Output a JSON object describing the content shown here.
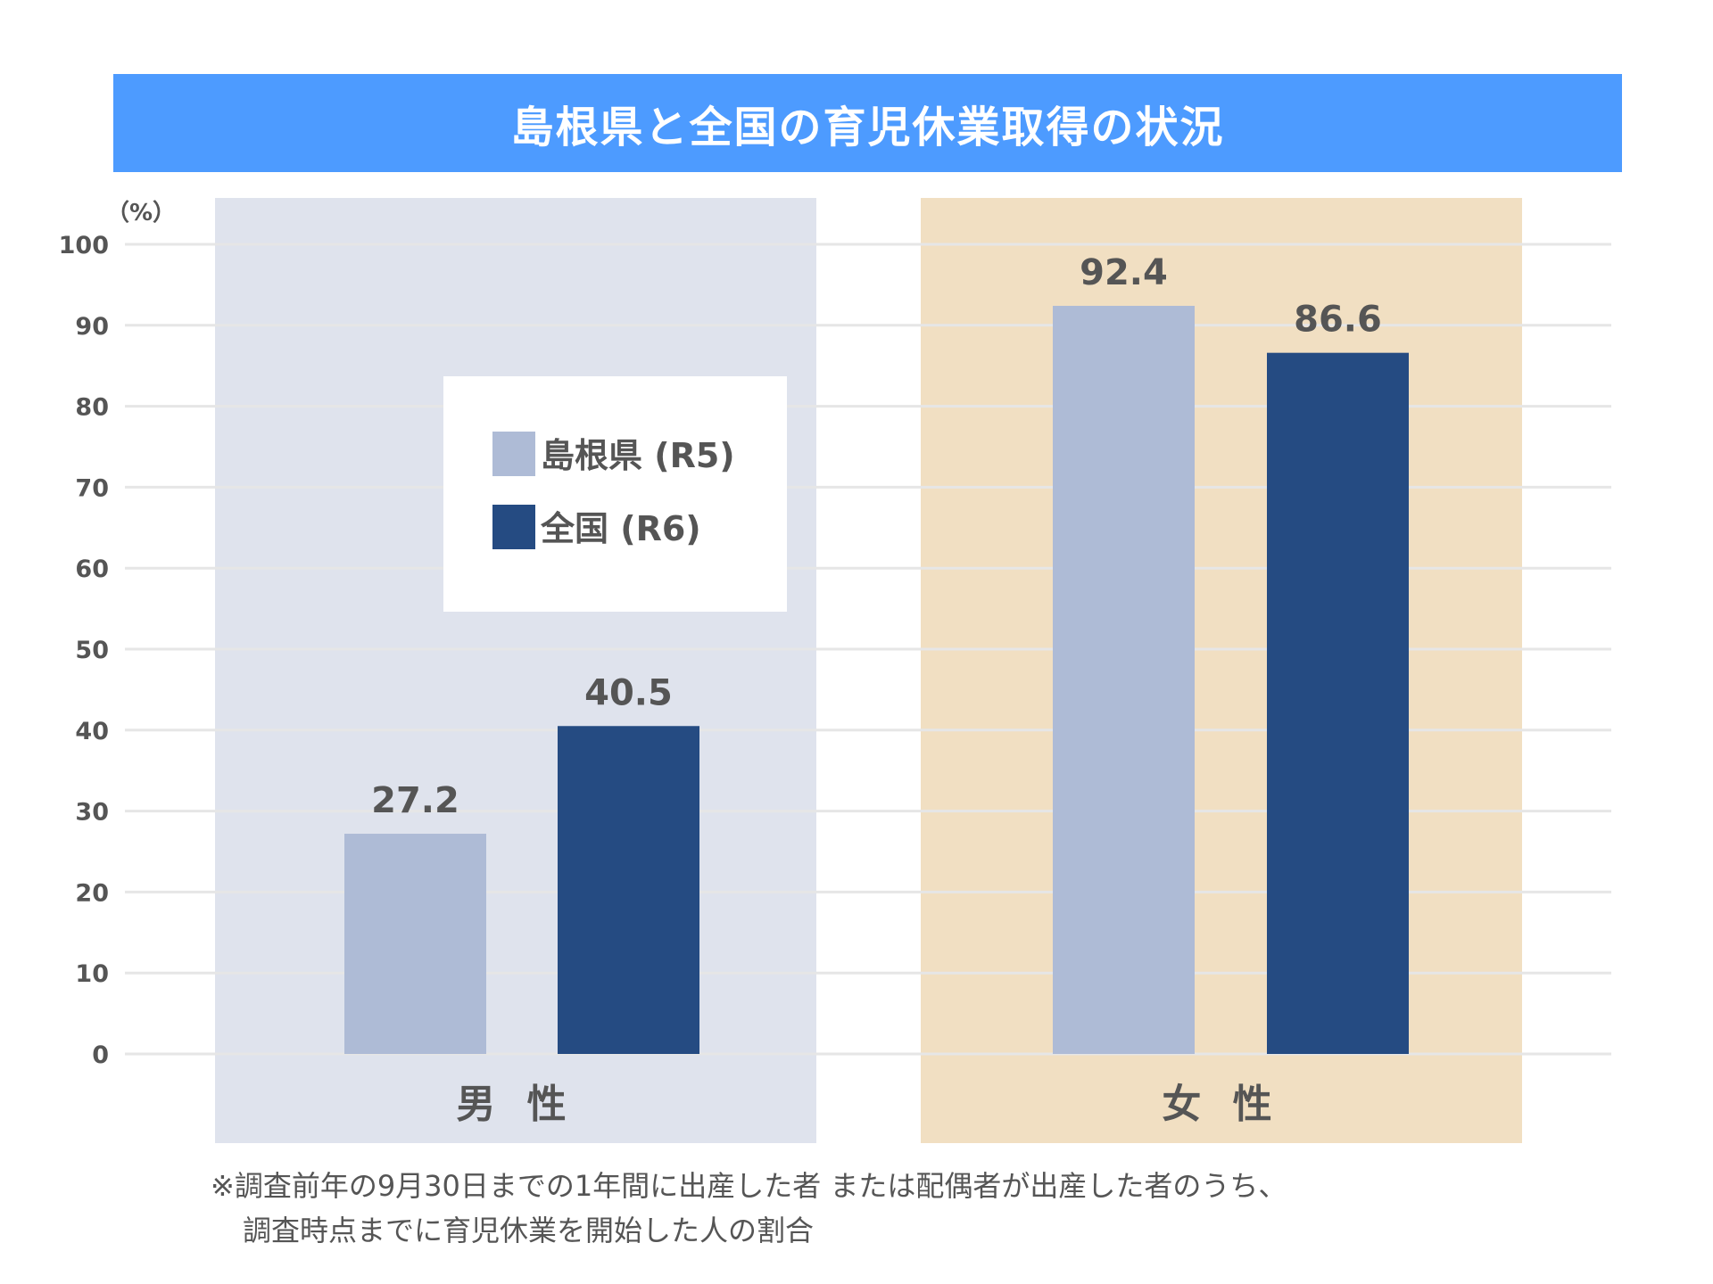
{
  "chart_data": {
    "type": "bar",
    "title": "島根県と全国の育児休業取得の状況",
    "unit": "（%）",
    "categories": [
      "男 性",
      "女 性"
    ],
    "series": [
      {
        "name": "島根県 (R5)",
        "values": [
          27.2,
          92.4
        ]
      },
      {
        "name": "全国 (R6)",
        "values": [
          40.5,
          86.6
        ]
      }
    ],
    "value_labels": [
      [
        "27.2",
        "92.4"
      ],
      [
        "40.5",
        "86.6"
      ]
    ],
    "y_ticks": [
      "0",
      "10",
      "20",
      "30",
      "40",
      "50",
      "60",
      "70",
      "80",
      "90",
      "100"
    ],
    "ylim": [
      0,
      100
    ],
    "grid": true,
    "legend_position": "inside-left-group",
    "colors": {
      "title_bg": "#4d9bff",
      "series": [
        "#aebbd6",
        "#254b82"
      ],
      "group_bg": [
        "#dfe3ed",
        "#f1dfc2"
      ],
      "grid": "#e6e6e6"
    }
  },
  "footnote": {
    "line1": "※調査前年の9月30日までの1年間に出産した者 または配偶者が出産した者のうち、",
    "line2": "調査時点までに育児休業を開始した人の割合"
  }
}
